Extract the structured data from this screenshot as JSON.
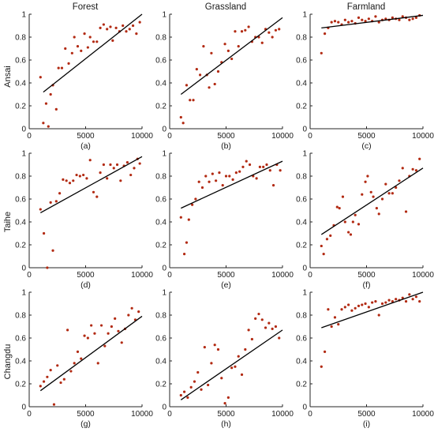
{
  "column_titles": [
    "Forest",
    "Grassland",
    "Farmland"
  ],
  "row_labels": [
    "Ansai",
    "Taihe",
    "Changdu"
  ],
  "colors": {
    "point": "#b22a12",
    "line": "#000000",
    "axis": "#262626"
  },
  "chart_data": [
    {
      "type": "scatter",
      "label": "(a)",
      "xlim": [
        0,
        10000
      ],
      "ylim": [
        0,
        1
      ],
      "xticks": [
        0,
        5000,
        10000
      ],
      "yticks": [
        0,
        0.2,
        0.4,
        0.6,
        0.8,
        1
      ],
      "trend": [
        [
          1250,
          0.32
        ],
        [
          10000,
          1.0
        ]
      ],
      "points": [
        [
          1000,
          0.45
        ],
        [
          1250,
          0.05
        ],
        [
          1500,
          0.22
        ],
        [
          1700,
          0.02
        ],
        [
          1900,
          0.3
        ],
        [
          2100,
          0.38
        ],
        [
          2400,
          0.17
        ],
        [
          2600,
          0.53
        ],
        [
          2900,
          0.53
        ],
        [
          3200,
          0.7
        ],
        [
          3500,
          0.57
        ],
        [
          3800,
          0.66
        ],
        [
          4000,
          0.8
        ],
        [
          4300,
          0.72
        ],
        [
          4600,
          0.68
        ],
        [
          4900,
          0.83
        ],
        [
          5200,
          0.71
        ],
        [
          5400,
          0.8
        ],
        [
          5700,
          0.76
        ],
        [
          6000,
          0.76
        ],
        [
          6300,
          0.88
        ],
        [
          6600,
          0.91
        ],
        [
          6900,
          0.87
        ],
        [
          7200,
          0.89
        ],
        [
          7400,
          0.77
        ],
        [
          7700,
          0.88
        ],
        [
          8000,
          0.85
        ],
        [
          8300,
          0.9
        ],
        [
          8600,
          0.85
        ],
        [
          8900,
          0.87
        ],
        [
          9200,
          0.9
        ],
        [
          9500,
          0.83
        ],
        [
          9800,
          0.93
        ]
      ]
    },
    {
      "type": "scatter",
      "label": "(b)",
      "xlim": [
        0,
        10000
      ],
      "ylim": [
        0,
        1
      ],
      "xticks": [
        0,
        5000,
        10000
      ],
      "yticks": [
        0,
        0.2,
        0.4,
        0.6,
        0.8,
        1
      ],
      "trend": [
        [
          1000,
          0.3
        ],
        [
          10000,
          0.97
        ]
      ],
      "points": [
        [
          1000,
          0.1
        ],
        [
          1200,
          0.05
        ],
        [
          1500,
          0.38
        ],
        [
          1800,
          0.25
        ],
        [
          2100,
          0.25
        ],
        [
          2400,
          0.52
        ],
        [
          2700,
          0.47
        ],
        [
          3000,
          0.72
        ],
        [
          3300,
          0.47
        ],
        [
          3500,
          0.36
        ],
        [
          3700,
          0.66
        ],
        [
          4000,
          0.39
        ],
        [
          4300,
          0.5
        ],
        [
          4600,
          0.58
        ],
        [
          4900,
          0.74
        ],
        [
          5200,
          0.68
        ],
        [
          5500,
          0.61
        ],
        [
          5800,
          0.85
        ],
        [
          6100,
          0.72
        ],
        [
          6400,
          0.85
        ],
        [
          6700,
          0.86
        ],
        [
          7000,
          0.89
        ],
        [
          7300,
          0.76
        ],
        [
          7600,
          0.8
        ],
        [
          7900,
          0.8
        ],
        [
          8200,
          0.75
        ],
        [
          8500,
          0.87
        ],
        [
          8800,
          0.84
        ],
        [
          9100,
          0.8
        ],
        [
          9400,
          0.86
        ],
        [
          9700,
          0.87
        ]
      ]
    },
    {
      "type": "scatter",
      "label": "(c)",
      "xlim": [
        0,
        10000
      ],
      "ylim": [
        0,
        1
      ],
      "xticks": [
        0,
        5000,
        10000
      ],
      "yticks": [
        0,
        0.2,
        0.4,
        0.6,
        0.8,
        1
      ],
      "trend": [
        [
          1000,
          0.88
        ],
        [
          10000,
          0.99
        ]
      ],
      "points": [
        [
          1000,
          0.66
        ],
        [
          1300,
          0.83
        ],
        [
          1600,
          0.88
        ],
        [
          1900,
          0.93
        ],
        [
          2200,
          0.94
        ],
        [
          2500,
          0.93
        ],
        [
          2800,
          0.91
        ],
        [
          3100,
          0.95
        ],
        [
          3400,
          0.93
        ],
        [
          3700,
          0.94
        ],
        [
          4000,
          0.92
        ],
        [
          4300,
          0.97
        ],
        [
          4600,
          0.95
        ],
        [
          4900,
          0.94
        ],
        [
          5200,
          0.96
        ],
        [
          5500,
          0.94
        ],
        [
          5800,
          0.98
        ],
        [
          6100,
          0.93
        ],
        [
          6400,
          0.95
        ],
        [
          6700,
          0.96
        ],
        [
          7000,
          0.95
        ],
        [
          7300,
          0.97
        ],
        [
          7600,
          0.96
        ],
        [
          7900,
          0.95
        ],
        [
          8200,
          0.98
        ],
        [
          8500,
          0.97
        ],
        [
          8800,
          0.95
        ],
        [
          9100,
          0.96
        ],
        [
          9400,
          0.97
        ],
        [
          9700,
          0.99
        ]
      ]
    },
    {
      "type": "scatter",
      "label": "(d)",
      "xlim": [
        0,
        10000
      ],
      "ylim": [
        0,
        1
      ],
      "xticks": [
        0,
        5000,
        10000
      ],
      "yticks": [
        0,
        0.2,
        0.4,
        0.6,
        0.8,
        1
      ],
      "trend": [
        [
          1000,
          0.48
        ],
        [
          10000,
          0.97
        ]
      ],
      "points": [
        [
          1000,
          0.51
        ],
        [
          1300,
          0.3
        ],
        [
          1600,
          0.0
        ],
        [
          1900,
          0.57
        ],
        [
          2100,
          0.15
        ],
        [
          2400,
          0.58
        ],
        [
          2700,
          0.65
        ],
        [
          3000,
          0.77
        ],
        [
          3300,
          0.76
        ],
        [
          3600,
          0.74
        ],
        [
          3900,
          0.76
        ],
        [
          4200,
          0.81
        ],
        [
          4500,
          0.8
        ],
        [
          4800,
          0.81
        ],
        [
          5100,
          0.78
        ],
        [
          5400,
          0.94
        ],
        [
          5700,
          0.66
        ],
        [
          6000,
          0.62
        ],
        [
          6300,
          0.83
        ],
        [
          6600,
          0.9
        ],
        [
          6900,
          0.78
        ],
        [
          7200,
          0.9
        ],
        [
          7500,
          0.87
        ],
        [
          7800,
          0.9
        ],
        [
          8100,
          0.76
        ],
        [
          8400,
          0.89
        ],
        [
          8700,
          0.92
        ],
        [
          9000,
          0.81
        ],
        [
          9300,
          0.87
        ],
        [
          9600,
          0.95
        ],
        [
          9800,
          0.91
        ]
      ]
    },
    {
      "type": "scatter",
      "label": "(e)",
      "xlim": [
        0,
        10000
      ],
      "ylim": [
        0,
        1
      ],
      "xticks": [
        0,
        5000,
        10000
      ],
      "yticks": [
        0,
        0.2,
        0.4,
        0.6,
        0.8,
        1
      ],
      "trend": [
        [
          1000,
          0.52
        ],
        [
          10000,
          0.93
        ]
      ],
      "points": [
        [
          1000,
          0.44
        ],
        [
          1300,
          0.12
        ],
        [
          1500,
          0.22
        ],
        [
          1700,
          0.42
        ],
        [
          2000,
          0.55
        ],
        [
          2300,
          0.6
        ],
        [
          2600,
          0.75
        ],
        [
          2900,
          0.7
        ],
        [
          3200,
          0.8
        ],
        [
          3500,
          0.75
        ],
        [
          3800,
          0.82
        ],
        [
          4100,
          0.76
        ],
        [
          4400,
          0.83
        ],
        [
          4700,
          0.72
        ],
        [
          5000,
          0.8
        ],
        [
          5300,
          0.8
        ],
        [
          5600,
          0.77
        ],
        [
          5900,
          0.83
        ],
        [
          6200,
          0.84
        ],
        [
          6500,
          0.88
        ],
        [
          6800,
          0.93
        ],
        [
          7100,
          0.9
        ],
        [
          7400,
          0.8
        ],
        [
          7700,
          0.78
        ],
        [
          8000,
          0.88
        ],
        [
          8300,
          0.88
        ],
        [
          8600,
          0.9
        ],
        [
          8900,
          0.85
        ],
        [
          9200,
          0.72
        ],
        [
          9500,
          0.9
        ],
        [
          9800,
          0.85
        ]
      ]
    },
    {
      "type": "scatter",
      "label": "(f)",
      "xlim": [
        0,
        10000
      ],
      "ylim": [
        0,
        1
      ],
      "xticks": [
        0,
        5000,
        10000
      ],
      "yticks": [
        0,
        0.2,
        0.4,
        0.6,
        0.8,
        1
      ],
      "trend": [
        [
          1000,
          0.29
        ],
        [
          10000,
          0.87
        ]
      ],
      "points": [
        [
          1000,
          0.19
        ],
        [
          1200,
          0.12
        ],
        [
          1500,
          0.25
        ],
        [
          1800,
          0.28
        ],
        [
          2100,
          0.37
        ],
        [
          2400,
          0.53
        ],
        [
          2600,
          0.52
        ],
        [
          2900,
          0.62
        ],
        [
          3100,
          0.4
        ],
        [
          3400,
          0.31
        ],
        [
          3600,
          0.29
        ],
        [
          3800,
          0.4
        ],
        [
          4000,
          0.46
        ],
        [
          4300,
          0.38
        ],
        [
          4600,
          0.64
        ],
        [
          4900,
          0.75
        ],
        [
          5100,
          0.8
        ],
        [
          5400,
          0.66
        ],
        [
          5600,
          0.62
        ],
        [
          5900,
          0.52
        ],
        [
          6100,
          0.47
        ],
        [
          6400,
          0.6
        ],
        [
          6700,
          0.73
        ],
        [
          7000,
          0.65
        ],
        [
          7300,
          0.65
        ],
        [
          7600,
          0.7
        ],
        [
          7900,
          0.76
        ],
        [
          8200,
          0.87
        ],
        [
          8500,
          0.49
        ],
        [
          8800,
          0.8
        ],
        [
          9100,
          0.86
        ],
        [
          9400,
          0.85
        ],
        [
          9700,
          0.95
        ]
      ]
    },
    {
      "type": "scatter",
      "label": "(g)",
      "xlim": [
        0,
        10000
      ],
      "ylim": [
        0,
        1
      ],
      "xticks": [
        0,
        5000,
        10000
      ],
      "yticks": [
        0,
        0.2,
        0.4,
        0.6,
        0.8,
        1
      ],
      "trend": [
        [
          1000,
          0.14
        ],
        [
          10000,
          0.79
        ]
      ],
      "points": [
        [
          1000,
          0.18
        ],
        [
          1300,
          0.22
        ],
        [
          1600,
          0.26
        ],
        [
          1900,
          0.32
        ],
        [
          2200,
          0.02
        ],
        [
          2500,
          0.36
        ],
        [
          2800,
          0.21
        ],
        [
          3100,
          0.24
        ],
        [
          3400,
          0.67
        ],
        [
          3700,
          0.31
        ],
        [
          4000,
          0.38
        ],
        [
          4300,
          0.48
        ],
        [
          4600,
          0.42
        ],
        [
          4900,
          0.62
        ],
        [
          5200,
          0.6
        ],
        [
          5500,
          0.71
        ],
        [
          5800,
          0.64
        ],
        [
          6100,
          0.38
        ],
        [
          6400,
          0.71
        ],
        [
          6700,
          0.53
        ],
        [
          7000,
          0.64
        ],
        [
          7300,
          0.7
        ],
        [
          7600,
          0.77
        ],
        [
          7900,
          0.66
        ],
        [
          8200,
          0.56
        ],
        [
          8500,
          0.68
        ],
        [
          8800,
          0.8
        ],
        [
          9100,
          0.86
        ],
        [
          9400,
          0.76
        ],
        [
          9700,
          0.83
        ]
      ]
    },
    {
      "type": "scatter",
      "label": "(h)",
      "xlim": [
        0,
        10000
      ],
      "ylim": [
        0,
        1
      ],
      "xticks": [
        0,
        5000,
        10000
      ],
      "yticks": [
        0,
        0.2,
        0.4,
        0.6,
        0.8,
        1
      ],
      "trend": [
        [
          1000,
          0.06
        ],
        [
          10000,
          0.67
        ]
      ],
      "points": [
        [
          1000,
          0.1
        ],
        [
          1300,
          0.13
        ],
        [
          1600,
          0.08
        ],
        [
          1900,
          0.17
        ],
        [
          2200,
          0.22
        ],
        [
          2500,
          0.3
        ],
        [
          2800,
          0.15
        ],
        [
          3100,
          0.52
        ],
        [
          3400,
          0.19
        ],
        [
          3700,
          0.38
        ],
        [
          4000,
          0.54
        ],
        [
          4300,
          0.5
        ],
        [
          4600,
          0.25
        ],
        [
          4900,
          0.03
        ],
        [
          5200,
          0.08
        ],
        [
          5500,
          0.34
        ],
        [
          5800,
          0.35
        ],
        [
          6100,
          0.44
        ],
        [
          6400,
          0.28
        ],
        [
          6700,
          0.5
        ],
        [
          7000,
          0.67
        ],
        [
          7300,
          0.59
        ],
        [
          7600,
          0.77
        ],
        [
          7900,
          0.81
        ],
        [
          8200,
          0.76
        ],
        [
          8500,
          0.69
        ],
        [
          8800,
          0.73
        ],
        [
          9100,
          0.68
        ],
        [
          9400,
          0.7
        ],
        [
          9700,
          0.6
        ]
      ]
    },
    {
      "type": "scatter",
      "label": "(i)",
      "xlim": [
        0,
        10000
      ],
      "ylim": [
        0,
        1
      ],
      "xticks": [
        0,
        5000,
        10000
      ],
      "yticks": [
        0,
        0.2,
        0.4,
        0.6,
        0.8,
        1
      ],
      "trend": [
        [
          1000,
          0.69
        ],
        [
          10000,
          1.0
        ]
      ],
      "points": [
        [
          1000,
          0.35
        ],
        [
          1300,
          0.48
        ],
        [
          1600,
          0.85
        ],
        [
          1900,
          0.7
        ],
        [
          2200,
          0.78
        ],
        [
          2500,
          0.72
        ],
        [
          2800,
          0.85
        ],
        [
          3100,
          0.87
        ],
        [
          3400,
          0.89
        ],
        [
          3700,
          0.84
        ],
        [
          4000,
          0.86
        ],
        [
          4300,
          0.88
        ],
        [
          4600,
          0.89
        ],
        [
          4900,
          0.9
        ],
        [
          5200,
          0.87
        ],
        [
          5500,
          0.91
        ],
        [
          5800,
          0.92
        ],
        [
          6100,
          0.8
        ],
        [
          6400,
          0.9
        ],
        [
          6700,
          0.91
        ],
        [
          7000,
          0.93
        ],
        [
          7300,
          0.92
        ],
        [
          7600,
          0.94
        ],
        [
          7900,
          0.93
        ],
        [
          8200,
          0.95
        ],
        [
          8500,
          0.92
        ],
        [
          8800,
          0.98
        ],
        [
          9100,
          0.94
        ],
        [
          9400,
          0.96
        ],
        [
          9700,
          0.92
        ]
      ]
    }
  ]
}
